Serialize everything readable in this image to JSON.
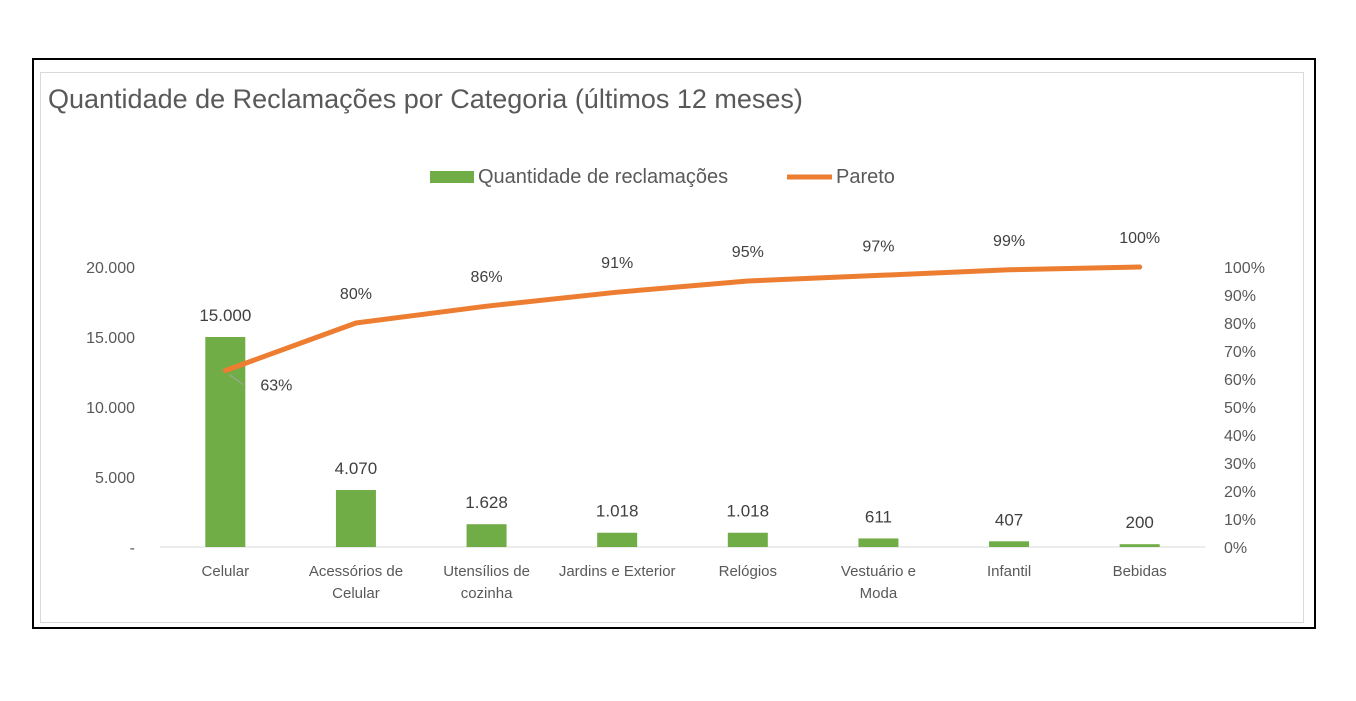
{
  "chart_data": {
    "type": "bar",
    "title": "Quantidade de Reclamações por Categoria (últimos 12 meses)",
    "categories": [
      [
        "Celular"
      ],
      [
        "Acessórios de",
        "Celular"
      ],
      [
        "Utensílios de",
        "cozinha"
      ],
      [
        "Jardins e Exterior"
      ],
      [
        "Relógios"
      ],
      [
        "Vestuário e",
        "Moda"
      ],
      [
        "Infantil"
      ],
      [
        "Bebidas"
      ]
    ],
    "series": [
      {
        "name": "Quantidade de reclamações",
        "type": "bar",
        "axis": "left",
        "color": "#70ad47",
        "values": [
          15000,
          4070,
          1628,
          1018,
          1018,
          611,
          407,
          200
        ],
        "labels": [
          "15.000",
          "4.070",
          "1.628",
          "1.018",
          "1.018",
          "611",
          "407",
          "200"
        ]
      },
      {
        "name": "Pareto",
        "type": "line",
        "axis": "right",
        "color": "#ed7d31",
        "values": [
          0.63,
          0.8,
          0.86,
          0.91,
          0.95,
          0.97,
          0.99,
          1.0
        ],
        "labels": [
          "63%",
          "80%",
          "86%",
          "91%",
          "95%",
          "97%",
          "99%",
          "100%"
        ]
      }
    ],
    "y_left": {
      "lim": [
        0,
        20000
      ],
      "ticks": [
        0,
        5000,
        10000,
        15000,
        20000
      ],
      "tick_labels": [
        "-",
        "5.000",
        "10.000",
        "15.000",
        "20.000"
      ]
    },
    "y_right": {
      "lim": [
        0,
        1
      ],
      "ticks": [
        0,
        0.1,
        0.2,
        0.3,
        0.4,
        0.5,
        0.6,
        0.7,
        0.8,
        0.9,
        1.0
      ],
      "tick_labels": [
        "0%",
        "10%",
        "20%",
        "30%",
        "40%",
        "50%",
        "60%",
        "70%",
        "80%",
        "90%",
        "100%"
      ]
    },
    "legend_position": "top",
    "grid": false
  }
}
